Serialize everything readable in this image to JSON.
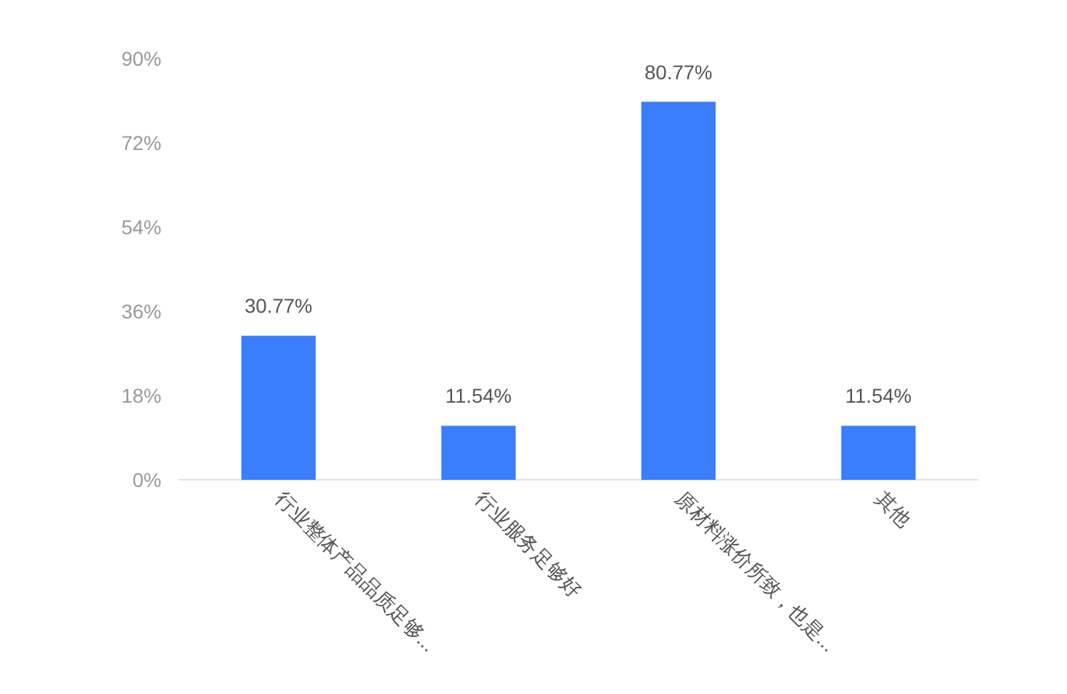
{
  "chart_data": {
    "type": "bar",
    "categories": [
      "行业整体产品品质足够...",
      "行业服务足够好",
      "原材料涨价所致，也是...",
      "其他"
    ],
    "values": [
      30.77,
      11.54,
      80.77,
      11.54
    ],
    "value_labels": [
      "30.77%",
      "11.54%",
      "80.77%",
      "11.54%"
    ],
    "color": "#3a7efd",
    "ylim": [
      0,
      90
    ],
    "yticks": [
      {
        "value": 0,
        "label": "0%"
      },
      {
        "value": 18,
        "label": "18%"
      },
      {
        "value": 36,
        "label": "36%"
      },
      {
        "value": 54,
        "label": "54%"
      },
      {
        "value": 72,
        "label": "72%"
      },
      {
        "value": 90,
        "label": "90%"
      }
    ],
    "grid": false
  }
}
